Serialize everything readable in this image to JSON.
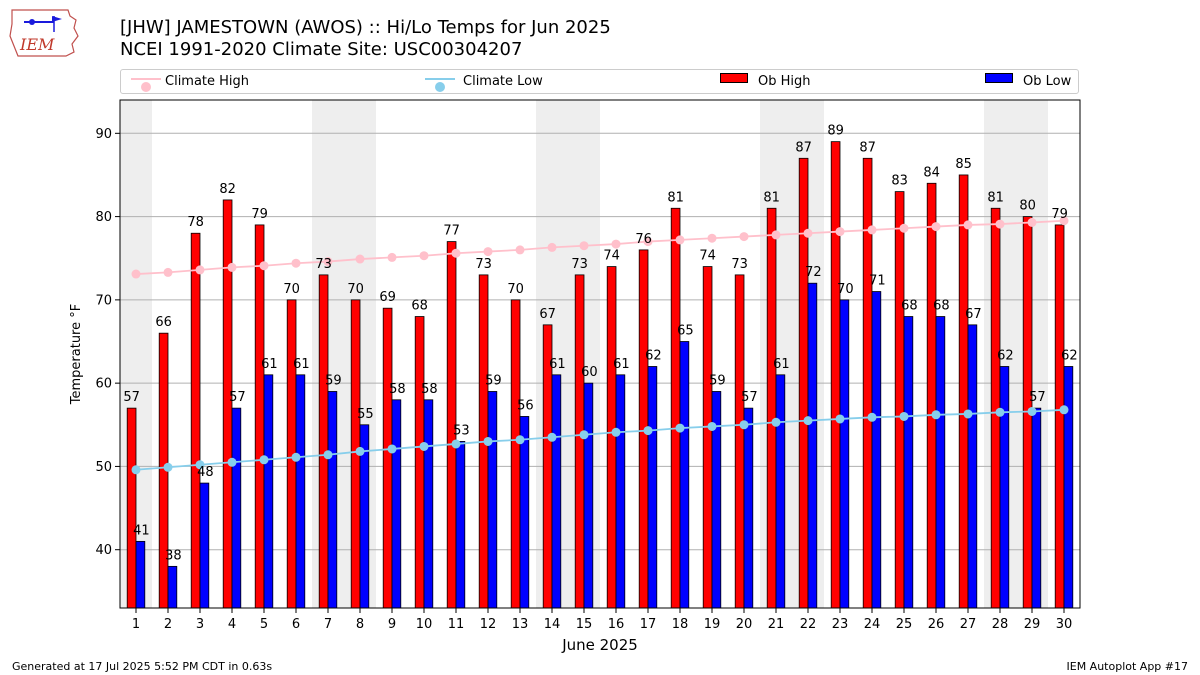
{
  "header": {
    "title_line1": "[JHW] JAMESTOWN (AWOS) :: Hi/Lo Temps for Jun 2025",
    "title_line2": "NCEI 1991-2020 Climate Site: USC00304207",
    "logo_text": "IEM"
  },
  "footer": {
    "generated": "Generated at 17 Jul 2025 5:52 PM CDT in 0.63s",
    "app": "IEM Autoplot App #17"
  },
  "colors": {
    "ob_high": "#ff0000",
    "ob_low": "#0000ff",
    "climate_high": "#ffc0cb",
    "climate_low": "#87ceeb",
    "weekend_shade": "#eeeeee",
    "grid": "#b0b0b0"
  },
  "chart_data": {
    "type": "bar",
    "title": "[JHW] JAMESTOWN (AWOS) :: Hi/Lo Temps for Jun 2025",
    "subtitle": "NCEI 1991-2020 Climate Site: USC00304207",
    "xlabel": "June 2025",
    "ylabel": "Temperature °F",
    "ylim": [
      33,
      94
    ],
    "yticks": [
      40,
      50,
      60,
      70,
      80,
      90
    ],
    "grid": true,
    "legend_placement": "top",
    "categories": [
      "1",
      "2",
      "3",
      "4",
      "5",
      "6",
      "7",
      "8",
      "9",
      "10",
      "11",
      "12",
      "13",
      "14",
      "15",
      "16",
      "17",
      "18",
      "19",
      "20",
      "21",
      "22",
      "23",
      "24",
      "25",
      "26",
      "27",
      "28",
      "29",
      "30"
    ],
    "shaded_days": [
      1,
      7,
      8,
      14,
      15,
      21,
      22,
      28,
      29
    ],
    "series": [
      {
        "name": "Ob High",
        "kind": "bar",
        "values": [
          57,
          66,
          78,
          82,
          79,
          70,
          73,
          70,
          69,
          68,
          77,
          73,
          70,
          67,
          73,
          74,
          76,
          81,
          74,
          73,
          81,
          87,
          89,
          87,
          83,
          84,
          85,
          81,
          80,
          79
        ]
      },
      {
        "name": "Ob Low",
        "kind": "bar",
        "values": [
          41,
          38,
          48,
          57,
          61,
          61,
          59,
          55,
          58,
          58,
          53,
          59,
          56,
          61,
          60,
          61,
          62,
          65,
          59,
          57,
          61,
          72,
          70,
          71,
          68,
          68,
          67,
          62,
          57,
          62
        ]
      },
      {
        "name": "Climate High",
        "kind": "line",
        "values": [
          73.1,
          73.3,
          73.6,
          73.9,
          74.1,
          74.4,
          74.6,
          74.9,
          75.1,
          75.3,
          75.6,
          75.8,
          76.0,
          76.3,
          76.5,
          76.7,
          77.0,
          77.2,
          77.4,
          77.6,
          77.8,
          78.0,
          78.2,
          78.4,
          78.6,
          78.8,
          79.0,
          79.1,
          79.3,
          79.5
        ]
      },
      {
        "name": "Climate Low",
        "kind": "line",
        "values": [
          49.6,
          49.9,
          50.2,
          50.5,
          50.8,
          51.1,
          51.4,
          51.8,
          52.1,
          52.4,
          52.7,
          53.0,
          53.2,
          53.5,
          53.8,
          54.1,
          54.3,
          54.6,
          54.8,
          55.0,
          55.3,
          55.5,
          55.7,
          55.9,
          56.0,
          56.2,
          56.3,
          56.5,
          56.6,
          56.8
        ]
      }
    ]
  }
}
